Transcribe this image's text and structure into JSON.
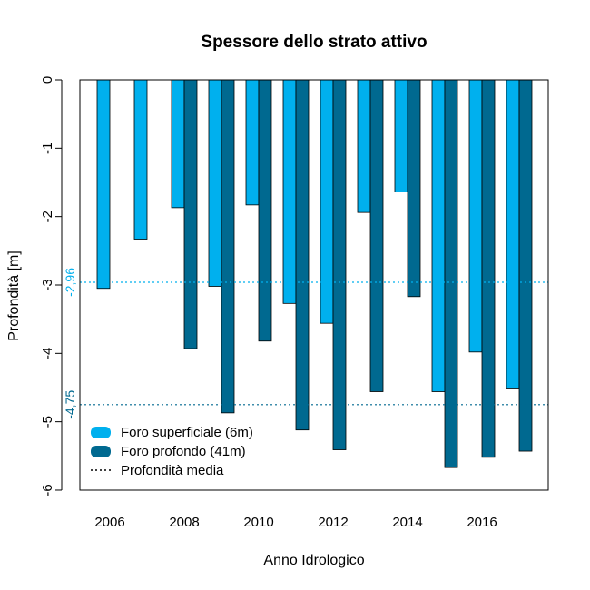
{
  "chart_data": {
    "type": "bar",
    "title": "Spessore dello strato attivo",
    "xlabel": "Anno Idrologico",
    "ylabel": "Profondità [m]",
    "ylim": [
      -6,
      0
    ],
    "yticks": [
      0,
      -1,
      -2,
      -3,
      -4,
      -5,
      -6
    ],
    "ytick_labels": [
      "0",
      "-1",
      "-2",
      "-3",
      "-4",
      "-5",
      "-6"
    ],
    "categories": [
      "2006",
      "2007",
      "2008",
      "2009",
      "2010",
      "2011",
      "2012",
      "2013",
      "2014",
      "2015",
      "2016",
      "2017"
    ],
    "xtick_labels": [
      "2006",
      "2008",
      "2010",
      "2012",
      "2014",
      "2016"
    ],
    "series": [
      {
        "name": "Foro superficiale (6m)",
        "color": "#00b0ee",
        "values": [
          -3.05,
          -2.33,
          -1.87,
          -3.02,
          -1.83,
          -3.27,
          -3.56,
          -1.94,
          -1.64,
          -4.56,
          -3.98,
          -4.52
        ]
      },
      {
        "name": "Foro profondo (41m)",
        "color": "#006990",
        "values": [
          null,
          null,
          -3.93,
          -4.87,
          -3.82,
          -5.12,
          -5.41,
          -4.56,
          -3.17,
          -5.67,
          -5.52,
          -5.43
        ]
      }
    ],
    "mean_lines": [
      {
        "series": "Foro superficiale (6m)",
        "value": -2.96,
        "label": "-2,96",
        "color": "#00b0ee"
      },
      {
        "series": "Foro profondo (41m)",
        "value": -4.75,
        "label": "-4,75",
        "color": "#006990"
      }
    ],
    "legend": {
      "position": "bottom-left",
      "entries": [
        {
          "label": "Foro superficiale (6m)",
          "color": "#00b0ee",
          "kind": "fill"
        },
        {
          "label": "Foro profondo (41m)",
          "color": "#006990",
          "kind": "fill"
        },
        {
          "label": "Profondità media",
          "color": "#000000",
          "kind": "dotted-line"
        }
      ]
    },
    "grid": false
  }
}
